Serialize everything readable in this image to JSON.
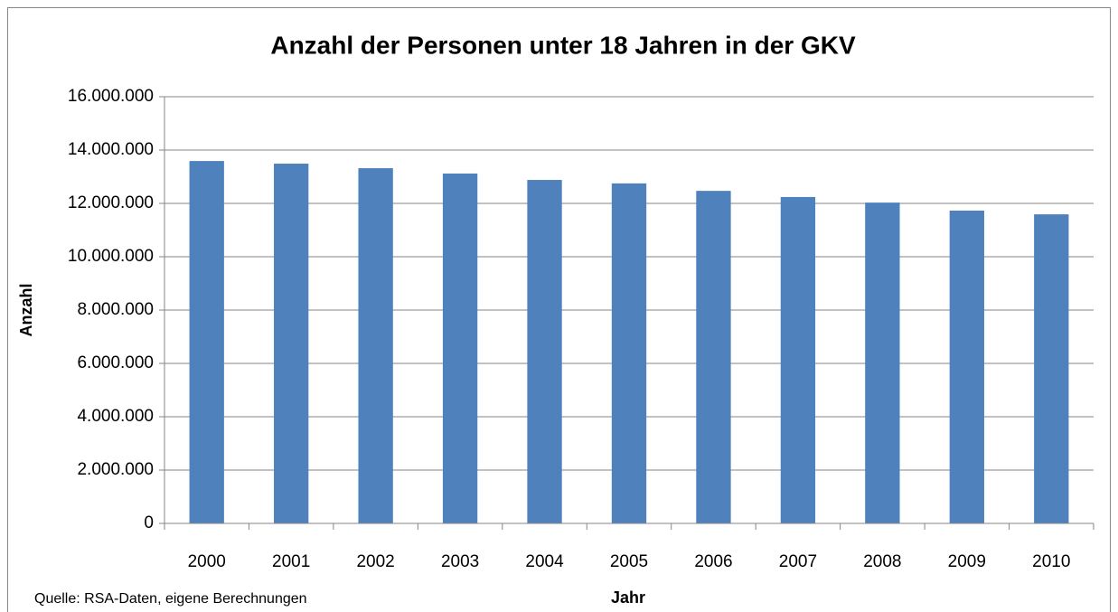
{
  "chart_data": {
    "type": "bar",
    "title": "Anzahl der Personen unter 18 Jahren in der GKV",
    "x_label": "Jahr",
    "y_label": "Anzahl",
    "source": "Quelle: RSA-Daten, eigene Berechnungen",
    "categories": [
      "2000",
      "2001",
      "2002",
      "2003",
      "2004",
      "2005",
      "2006",
      "2007",
      "2008",
      "2009",
      "2010"
    ],
    "values": [
      13590000,
      13490000,
      13320000,
      13120000,
      12880000,
      12750000,
      12470000,
      12240000,
      12030000,
      11730000,
      11590000
    ],
    "color": "#4f81bd",
    "ylim": [
      0,
      16000000
    ],
    "yticks": [
      0,
      {
        "value": 2000000,
        "label": "2.000.000"
      },
      {
        "value": 4000000,
        "label": "4.000.000"
      },
      {
        "value": 6000000,
        "label": "6.000.000"
      },
      {
        "value": 8000000,
        "label": "8.000.000"
      },
      {
        "value": 10000000,
        "label": "10.000.000"
      },
      {
        "value": 12000000,
        "label": "12.000.000"
      },
      {
        "value": 14000000,
        "label": "14.000.000"
      },
      {
        "value": 16000000,
        "label": "16.000.000"
      }
    ],
    "grid": true
  }
}
